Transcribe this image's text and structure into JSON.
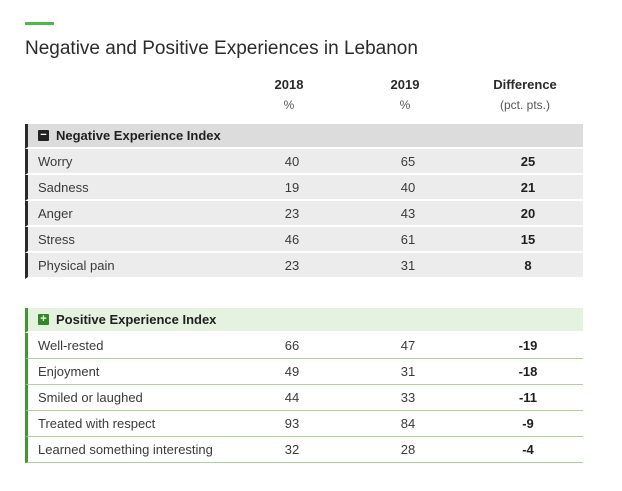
{
  "colors": {
    "accent": "#4db848",
    "negative_bar": "#2a2a2a",
    "positive_bar": "#3e9a2c"
  },
  "title": "Negative and Positive Experiences in Lebanon",
  "columns": [
    {
      "year": "2018",
      "unit": "%"
    },
    {
      "year": "2019",
      "unit": "%"
    },
    {
      "year": "Difference",
      "unit": "(pct. pts.)"
    }
  ],
  "negative": {
    "icon": "minus-icon",
    "sign": "−",
    "heading": "Negative Experience Index",
    "rows": [
      {
        "label": "Worry",
        "v2018": "40",
        "v2019": "65",
        "diff": "25"
      },
      {
        "label": "Sadness",
        "v2018": "19",
        "v2019": "40",
        "diff": "21"
      },
      {
        "label": "Anger",
        "v2018": "23",
        "v2019": "43",
        "diff": "20"
      },
      {
        "label": "Stress",
        "v2018": "46",
        "v2019": "61",
        "diff": "15"
      },
      {
        "label": "Physical pain",
        "v2018": "23",
        "v2019": "31",
        "diff": "8"
      }
    ]
  },
  "positive": {
    "icon": "plus-icon",
    "sign": "+",
    "heading": "Positive Experience Index",
    "rows": [
      {
        "label": "Well-rested",
        "v2018": "66",
        "v2019": "47",
        "diff": "-19"
      },
      {
        "label": "Enjoyment",
        "v2018": "49",
        "v2019": "31",
        "diff": "-18"
      },
      {
        "label": "Smiled or laughed",
        "v2018": "44",
        "v2019": "33",
        "diff": "-11"
      },
      {
        "label": "Treated with respect",
        "v2018": "93",
        "v2019": "84",
        "diff": "-9"
      },
      {
        "label": "Learned something interesting",
        "v2018": "32",
        "v2019": "28",
        "diff": "-4"
      }
    ]
  }
}
